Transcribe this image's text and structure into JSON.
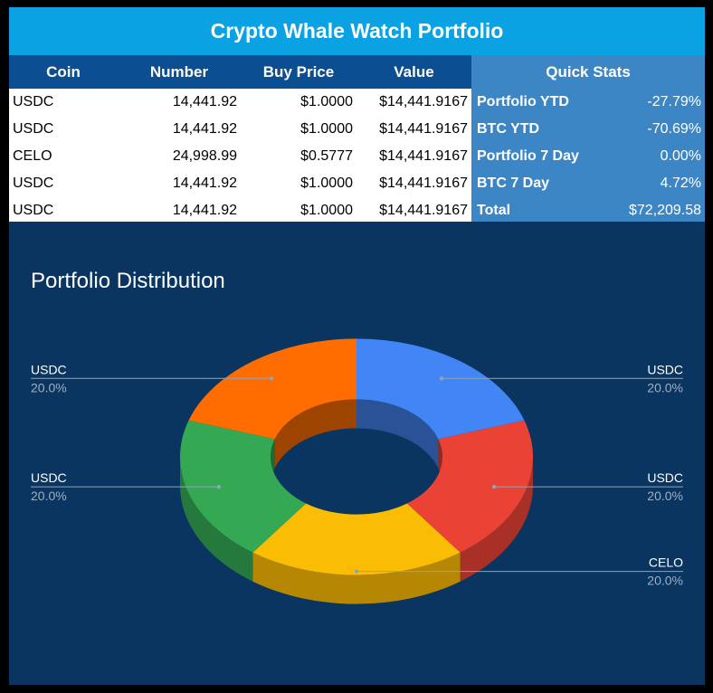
{
  "title": "Crypto Whale Watch Portfolio",
  "table": {
    "headers": [
      "Coin",
      "Number",
      "Buy Price",
      "Value",
      "Quick Stats"
    ],
    "rows": [
      {
        "coin": "USDC",
        "number": "14,441.92",
        "buy_price": "$1.0000",
        "value": "$14,441.9167"
      },
      {
        "coin": "USDC",
        "number": "14,441.92",
        "buy_price": "$1.0000",
        "value": "$14,441.9167"
      },
      {
        "coin": "CELO",
        "number": "24,998.99",
        "buy_price": "$0.5777",
        "value": "$14,441.9167"
      },
      {
        "coin": "USDC",
        "number": "14,441.92",
        "buy_price": "$1.0000",
        "value": "$14,441.9167"
      },
      {
        "coin": "USDC",
        "number": "14,441.92",
        "buy_price": "$1.0000",
        "value": "$14,441.9167"
      }
    ],
    "quick_stats": [
      {
        "label": "Portfolio YTD",
        "value": "-27.79%"
      },
      {
        "label": "BTC YTD",
        "value": "-70.69%"
      },
      {
        "label": "Portfolio 7 Day",
        "value": "0.00%"
      },
      {
        "label": "BTC 7 Day",
        "value": "4.72%"
      },
      {
        "label": "Total",
        "value": "$72,209.58"
      }
    ]
  },
  "colors": {
    "title_bar": "#0aa2e3",
    "header": "#0b4f92",
    "quick_stats": "#3d86c6",
    "chart_bg": "#0a3560"
  },
  "chart_data": {
    "type": "pie",
    "style": "3d-donut",
    "title": "Portfolio Distribution",
    "slices": [
      {
        "label": "USDC",
        "value": 20.0,
        "display": "20.0%",
        "color": "#4285f4",
        "side": "right"
      },
      {
        "label": "USDC",
        "value": 20.0,
        "display": "20.0%",
        "color": "#ea4335",
        "side": "right"
      },
      {
        "label": "CELO",
        "value": 20.0,
        "display": "20.0%",
        "color": "#fbbc04",
        "side": "right"
      },
      {
        "label": "USDC",
        "value": 20.0,
        "display": "20.0%",
        "color": "#34a853",
        "side": "left"
      },
      {
        "label": "USDC",
        "value": 20.0,
        "display": "20.0%",
        "color": "#ff6d01",
        "side": "left"
      }
    ],
    "legend": "labeled-callouts"
  }
}
